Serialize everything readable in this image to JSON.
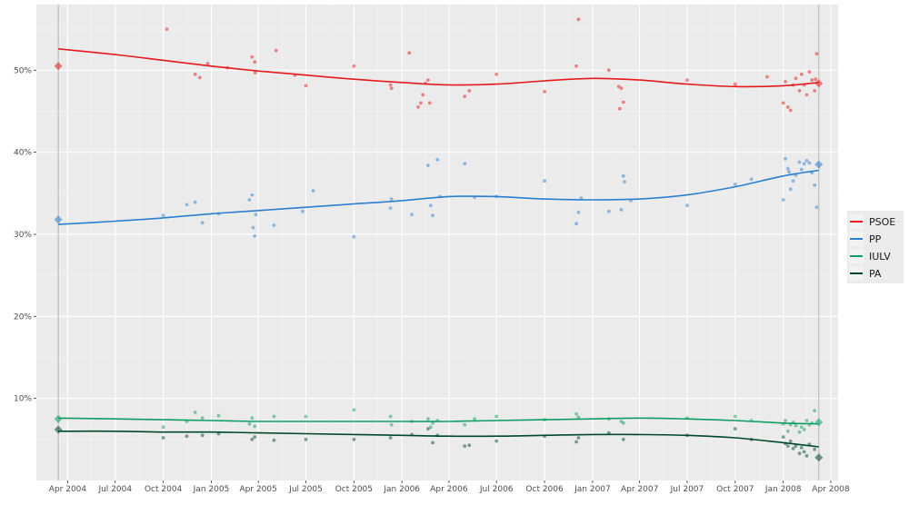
{
  "chart_data": {
    "type": "line",
    "title": "",
    "xlabel": "",
    "ylabel": "",
    "x_range": [
      "2004-02-01",
      "2008-04-15"
    ],
    "ylim": [
      0,
      58
    ],
    "grid": true,
    "legend_position": "right",
    "x_ticks": [
      {
        "date": "2004-04-01",
        "label": "Apr 2004"
      },
      {
        "date": "2004-07-01",
        "label": "Jul 2004"
      },
      {
        "date": "2004-10-01",
        "label": "Oct 2004"
      },
      {
        "date": "2005-01-01",
        "label": "Jan 2005"
      },
      {
        "date": "2005-04-01",
        "label": "Apr 2005"
      },
      {
        "date": "2005-07-01",
        "label": "Jul 2005"
      },
      {
        "date": "2005-10-01",
        "label": "Oct 2005"
      },
      {
        "date": "2006-01-01",
        "label": "Jan 2006"
      },
      {
        "date": "2006-04-01",
        "label": "Apr 2006"
      },
      {
        "date": "2006-07-01",
        "label": "Jul 2006"
      },
      {
        "date": "2006-10-01",
        "label": "Oct 2006"
      },
      {
        "date": "2007-01-01",
        "label": "Jan 2007"
      },
      {
        "date": "2007-04-01",
        "label": "Apr 2007"
      },
      {
        "date": "2007-07-01",
        "label": "Jul 2007"
      },
      {
        "date": "2007-10-01",
        "label": "Oct 2007"
      },
      {
        "date": "2008-01-01",
        "label": "Jan 2008"
      },
      {
        "date": "2008-04-01",
        "label": "Apr 2008"
      }
    ],
    "y_ticks": [
      {
        "value": 10,
        "label": "10%"
      },
      {
        "value": 20,
        "label": "20%"
      },
      {
        "value": 30,
        "label": "30%"
      },
      {
        "value": 40,
        "label": "40%"
      },
      {
        "value": 50,
        "label": "50%"
      }
    ],
    "election_dates": [
      "2004-03-14",
      "2008-03-09"
    ],
    "series": [
      {
        "name": "PSOE",
        "color": "#e41a1c",
        "trend": [
          [
            "2004-03-14",
            52.6
          ],
          [
            "2004-07-01",
            51.9
          ],
          [
            "2004-10-01",
            51.2
          ],
          [
            "2005-01-01",
            50.5
          ],
          [
            "2005-04-01",
            49.9
          ],
          [
            "2005-07-01",
            49.4
          ],
          [
            "2005-10-01",
            48.9
          ],
          [
            "2006-01-01",
            48.5
          ],
          [
            "2006-04-01",
            48.2
          ],
          [
            "2006-07-01",
            48.3
          ],
          [
            "2006-10-01",
            48.7
          ],
          [
            "2007-01-01",
            49.0
          ],
          [
            "2007-04-01",
            48.8
          ],
          [
            "2007-07-01",
            48.3
          ],
          [
            "2007-10-01",
            48.0
          ],
          [
            "2008-01-01",
            48.1
          ],
          [
            "2008-03-09",
            48.5
          ]
        ],
        "result": [
          "2004-03-14",
          50.5
        ],
        "final_result": [
          "2008-03-09",
          48.4
        ],
        "polls": [
          [
            "2004-10-08",
            55.0
          ],
          [
            "2004-12-01",
            49.5
          ],
          [
            "2004-12-10",
            49.1
          ],
          [
            "2004-12-25",
            50.8
          ],
          [
            "2005-02-01",
            50.3
          ],
          [
            "2005-03-20",
            51.6
          ],
          [
            "2005-03-25",
            51.0
          ],
          [
            "2005-03-26",
            49.7
          ],
          [
            "2005-05-05",
            52.4
          ],
          [
            "2005-06-10",
            49.4
          ],
          [
            "2005-07-01",
            48.1
          ],
          [
            "2005-10-01",
            50.5
          ],
          [
            "2005-12-10",
            48.2
          ],
          [
            "2005-12-12",
            47.8
          ],
          [
            "2006-01-15",
            52.1
          ],
          [
            "2006-02-01",
            45.5
          ],
          [
            "2006-02-06",
            46.0
          ],
          [
            "2006-02-10",
            47.0
          ],
          [
            "2006-02-15",
            48.4
          ],
          [
            "2006-02-20",
            48.8
          ],
          [
            "2006-02-23",
            46.0
          ],
          [
            "2006-05-01",
            46.8
          ],
          [
            "2006-05-10",
            47.5
          ],
          [
            "2006-07-01",
            49.5
          ],
          [
            "2006-10-01",
            47.4
          ],
          [
            "2006-12-01",
            50.5
          ],
          [
            "2006-12-05",
            56.2
          ],
          [
            "2007-02-01",
            50.0
          ],
          [
            "2007-02-20",
            48.0
          ],
          [
            "2007-02-22",
            45.3
          ],
          [
            "2007-03-01",
            46.1
          ],
          [
            "2007-02-25",
            47.8
          ],
          [
            "2007-07-01",
            48.8
          ],
          [
            "2007-10-01",
            48.3
          ],
          [
            "2007-12-01",
            49.2
          ],
          [
            "2008-01-01",
            46.0
          ],
          [
            "2008-01-05",
            48.6
          ],
          [
            "2008-01-10",
            45.5
          ],
          [
            "2008-01-15",
            45.1
          ],
          [
            "2008-01-20",
            48.2
          ],
          [
            "2008-01-25",
            49.0
          ],
          [
            "2008-02-01",
            47.5
          ],
          [
            "2008-02-05",
            49.5
          ],
          [
            "2008-02-10",
            48.2
          ],
          [
            "2008-02-15",
            47.0
          ],
          [
            "2008-02-20",
            49.8
          ],
          [
            "2008-02-25",
            48.8
          ],
          [
            "2008-03-01",
            47.5
          ],
          [
            "2008-03-03",
            48.9
          ],
          [
            "2008-03-05",
            52.0
          ]
        ]
      },
      {
        "name": "PP",
        "color": "#2b7fcf",
        "trend": [
          [
            "2004-03-14",
            31.2
          ],
          [
            "2004-07-01",
            31.6
          ],
          [
            "2004-10-01",
            32.0
          ],
          [
            "2005-01-01",
            32.5
          ],
          [
            "2005-04-01",
            32.9
          ],
          [
            "2005-07-01",
            33.3
          ],
          [
            "2005-10-01",
            33.7
          ],
          [
            "2006-01-01",
            34.1
          ],
          [
            "2006-04-01",
            34.6
          ],
          [
            "2006-07-01",
            34.6
          ],
          [
            "2006-10-01",
            34.3
          ],
          [
            "2007-01-01",
            34.2
          ],
          [
            "2007-04-01",
            34.3
          ],
          [
            "2007-07-01",
            34.8
          ],
          [
            "2007-10-01",
            35.8
          ],
          [
            "2008-01-01",
            37.1
          ],
          [
            "2008-03-09",
            37.8
          ]
        ],
        "result": [
          "2004-03-14",
          31.8
        ],
        "final_result": [
          "2008-03-09",
          38.5
        ],
        "polls": [
          [
            "2004-10-01",
            32.3
          ],
          [
            "2004-11-15",
            33.6
          ],
          [
            "2004-12-01",
            33.9
          ],
          [
            "2004-12-15",
            31.4
          ],
          [
            "2005-01-15",
            32.5
          ],
          [
            "2005-03-15",
            34.2
          ],
          [
            "2005-03-20",
            34.8
          ],
          [
            "2005-03-22",
            30.8
          ],
          [
            "2005-03-25",
            29.8
          ],
          [
            "2005-03-27",
            32.4
          ],
          [
            "2005-05-01",
            31.1
          ],
          [
            "2005-06-25",
            32.8
          ],
          [
            "2005-07-15",
            35.3
          ],
          [
            "2005-10-01",
            29.7
          ],
          [
            "2005-12-10",
            33.2
          ],
          [
            "2005-12-12",
            34.3
          ],
          [
            "2006-01-20",
            32.4
          ],
          [
            "2006-02-20",
            38.4
          ],
          [
            "2006-02-25",
            33.5
          ],
          [
            "2006-03-01",
            32.3
          ],
          [
            "2006-03-10",
            39.1
          ],
          [
            "2006-03-15",
            34.6
          ],
          [
            "2006-05-01",
            38.6
          ],
          [
            "2006-05-20",
            34.5
          ],
          [
            "2006-07-01",
            34.6
          ],
          [
            "2006-10-01",
            36.5
          ],
          [
            "2006-12-01",
            31.3
          ],
          [
            "2006-12-05",
            32.7
          ],
          [
            "2006-12-10",
            34.4
          ],
          [
            "2007-02-01",
            32.8
          ],
          [
            "2007-02-25",
            33.0
          ],
          [
            "2007-03-01",
            37.1
          ],
          [
            "2007-03-03",
            36.4
          ],
          [
            "2007-03-15",
            34.1
          ],
          [
            "2007-07-01",
            33.5
          ],
          [
            "2007-10-01",
            36.1
          ],
          [
            "2007-11-01",
            36.7
          ],
          [
            "2008-01-01",
            34.2
          ],
          [
            "2008-01-05",
            39.2
          ],
          [
            "2008-01-10",
            38.0
          ],
          [
            "2008-01-12",
            37.6
          ],
          [
            "2008-01-15",
            35.5
          ],
          [
            "2008-01-20",
            36.5
          ],
          [
            "2008-01-25",
            37.2
          ],
          [
            "2008-02-01",
            38.8
          ],
          [
            "2008-02-05",
            37.9
          ],
          [
            "2008-02-10",
            38.6
          ],
          [
            "2008-02-15",
            39.0
          ],
          [
            "2008-02-20",
            38.7
          ],
          [
            "2008-02-25",
            37.5
          ],
          [
            "2008-03-01",
            36.0
          ],
          [
            "2008-03-05",
            33.3
          ]
        ]
      },
      {
        "name": "IULV",
        "color": "#0e9e63",
        "trend": [
          [
            "2004-03-14",
            7.6
          ],
          [
            "2004-07-01",
            7.5
          ],
          [
            "2004-10-01",
            7.4
          ],
          [
            "2005-01-01",
            7.3
          ],
          [
            "2005-04-01",
            7.2
          ],
          [
            "2005-07-01",
            7.2
          ],
          [
            "2005-10-01",
            7.2
          ],
          [
            "2006-01-01",
            7.2
          ],
          [
            "2006-04-01",
            7.2
          ],
          [
            "2006-07-01",
            7.3
          ],
          [
            "2006-10-01",
            7.4
          ],
          [
            "2007-01-01",
            7.5
          ],
          [
            "2007-04-01",
            7.6
          ],
          [
            "2007-07-01",
            7.5
          ],
          [
            "2007-10-01",
            7.3
          ],
          [
            "2008-01-01",
            7.0
          ],
          [
            "2008-03-09",
            6.9
          ]
        ],
        "result": [
          "2004-03-14",
          7.5
        ],
        "final_result": [
          "2008-03-09",
          7.1
        ],
        "polls": [
          [
            "2004-10-01",
            6.5
          ],
          [
            "2004-11-15",
            7.2
          ],
          [
            "2004-12-01",
            8.3
          ],
          [
            "2004-12-15",
            7.6
          ],
          [
            "2005-01-15",
            7.9
          ],
          [
            "2005-03-15",
            6.9
          ],
          [
            "2005-03-20",
            7.6
          ],
          [
            "2005-03-25",
            6.6
          ],
          [
            "2005-05-01",
            7.8
          ],
          [
            "2005-07-01",
            7.8
          ],
          [
            "2005-10-01",
            8.6
          ],
          [
            "2005-12-10",
            7.8
          ],
          [
            "2005-12-12",
            6.8
          ],
          [
            "2006-01-20",
            7.2
          ],
          [
            "2006-02-20",
            7.5
          ],
          [
            "2006-02-25",
            6.5
          ],
          [
            "2006-03-01",
            7.0
          ],
          [
            "2006-03-10",
            7.3
          ],
          [
            "2006-05-01",
            6.8
          ],
          [
            "2006-05-20",
            7.5
          ],
          [
            "2006-07-01",
            7.8
          ],
          [
            "2006-10-01",
            7.4
          ],
          [
            "2006-12-01",
            8.1
          ],
          [
            "2006-12-05",
            7.7
          ],
          [
            "2007-02-01",
            7.5
          ],
          [
            "2007-02-25",
            7.2
          ],
          [
            "2007-03-01",
            7.0
          ],
          [
            "2007-07-01",
            7.6
          ],
          [
            "2007-10-01",
            7.8
          ],
          [
            "2007-11-01",
            7.3
          ],
          [
            "2008-01-01",
            6.9
          ],
          [
            "2008-01-05",
            7.3
          ],
          [
            "2008-01-10",
            6.0
          ],
          [
            "2008-01-15",
            6.8
          ],
          [
            "2008-01-20",
            7.1
          ],
          [
            "2008-01-25",
            6.7
          ],
          [
            "2008-02-01",
            5.9
          ],
          [
            "2008-02-05",
            6.5
          ],
          [
            "2008-02-10",
            6.2
          ],
          [
            "2008-02-15",
            7.3
          ],
          [
            "2008-02-20",
            6.8
          ],
          [
            "2008-02-25",
            7.0
          ],
          [
            "2008-03-01",
            8.5
          ]
        ]
      },
      {
        "name": "PA",
        "color": "#00482b",
        "trend": [
          [
            "2004-03-14",
            6.0
          ],
          [
            "2004-07-01",
            6.0
          ],
          [
            "2004-10-01",
            5.9
          ],
          [
            "2005-01-01",
            5.9
          ],
          [
            "2005-04-01",
            5.8
          ],
          [
            "2005-07-01",
            5.7
          ],
          [
            "2005-10-01",
            5.6
          ],
          [
            "2006-01-01",
            5.5
          ],
          [
            "2006-04-01",
            5.4
          ],
          [
            "2006-07-01",
            5.4
          ],
          [
            "2006-10-01",
            5.5
          ],
          [
            "2007-01-01",
            5.6
          ],
          [
            "2007-04-01",
            5.6
          ],
          [
            "2007-07-01",
            5.5
          ],
          [
            "2007-10-01",
            5.2
          ],
          [
            "2008-01-01",
            4.6
          ],
          [
            "2008-03-09",
            4.1
          ]
        ],
        "result": [
          "2004-03-14",
          6.2
        ],
        "final_result": [
          "2008-03-09",
          2.8
        ],
        "polls": [
          [
            "2004-10-01",
            5.2
          ],
          [
            "2004-11-15",
            5.4
          ],
          [
            "2004-12-15",
            5.5
          ],
          [
            "2005-01-15",
            5.7
          ],
          [
            "2005-03-20",
            5.0
          ],
          [
            "2005-03-25",
            5.3
          ],
          [
            "2005-05-01",
            4.9
          ],
          [
            "2005-07-01",
            5.0
          ],
          [
            "2005-10-01",
            5.0
          ],
          [
            "2005-12-10",
            5.2
          ],
          [
            "2006-01-20",
            5.6
          ],
          [
            "2006-02-20",
            6.3
          ],
          [
            "2006-03-01",
            4.6
          ],
          [
            "2006-03-10",
            5.5
          ],
          [
            "2006-05-01",
            4.2
          ],
          [
            "2006-05-10",
            4.3
          ],
          [
            "2006-07-01",
            4.8
          ],
          [
            "2006-10-01",
            5.4
          ],
          [
            "2006-12-01",
            4.7
          ],
          [
            "2006-12-05",
            5.2
          ],
          [
            "2007-02-01",
            5.8
          ],
          [
            "2007-03-01",
            5.0
          ],
          [
            "2007-07-01",
            5.5
          ],
          [
            "2007-10-01",
            6.3
          ],
          [
            "2007-11-01",
            5.0
          ],
          [
            "2008-01-01",
            5.3
          ],
          [
            "2008-01-05",
            4.5
          ],
          [
            "2008-01-10",
            4.2
          ],
          [
            "2008-01-15",
            4.8
          ],
          [
            "2008-01-20",
            3.9
          ],
          [
            "2008-01-25",
            4.2
          ],
          [
            "2008-02-01",
            3.3
          ],
          [
            "2008-02-05",
            4.0
          ],
          [
            "2008-02-10",
            3.5
          ],
          [
            "2008-02-15",
            3.0
          ],
          [
            "2008-02-20",
            4.4
          ],
          [
            "2008-03-01",
            3.8
          ]
        ]
      }
    ]
  }
}
